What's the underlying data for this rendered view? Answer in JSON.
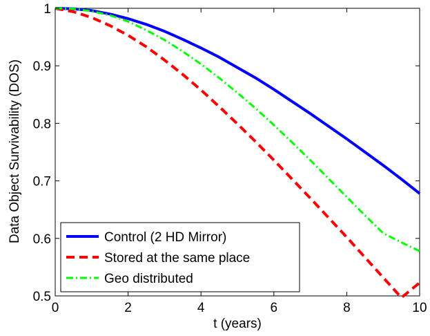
{
  "chart_data": {
    "type": "line",
    "title": "",
    "xlabel": "t (years)",
    "ylabel": "Data Object Survivability (DOS)",
    "xlim": [
      0,
      10
    ],
    "ylim": [
      0.5,
      1
    ],
    "xticks": [
      0,
      2,
      4,
      6,
      8,
      10
    ],
    "yticks": [
      0.5,
      0.6,
      0.7,
      0.8,
      0.9,
      1
    ],
    "xtick_labels": [
      "0",
      "2",
      "4",
      "6",
      "8",
      "10"
    ],
    "ytick_labels": [
      "0.5",
      "0.6",
      "0.7",
      "0.8",
      "0.9",
      "1"
    ],
    "grid": false,
    "legend_position": "bottom-left",
    "x": [
      0,
      0.5,
      1,
      1.5,
      2,
      2.5,
      3,
      3.5,
      4,
      4.5,
      5,
      5.5,
      6,
      6.5,
      7,
      7.5,
      8,
      8.5,
      9,
      9.5,
      10
    ],
    "series": [
      {
        "name": "Control (2 HD Mirror)",
        "color": "#0000ff",
        "style": "solid",
        "values": [
          1.0,
          0.999,
          0.996,
          0.99,
          0.982,
          0.972,
          0.96,
          0.946,
          0.931,
          0.915,
          0.897,
          0.879,
          0.859,
          0.838,
          0.817,
          0.795,
          0.773,
          0.75,
          0.727,
          0.703,
          0.678
        ]
      },
      {
        "name": "Stored at the same place",
        "color": "#ff0000",
        "style": "dashed",
        "values": [
          1.0,
          0.994,
          0.984,
          0.97,
          0.953,
          0.933,
          0.91,
          0.885,
          0.858,
          0.829,
          0.799,
          0.768,
          0.736,
          0.703,
          0.67,
          0.636,
          0.602,
          0.567,
          0.532,
          0.497,
          0.523
        ]
      },
      {
        "name": "Geo distributed",
        "color": "#00ff00",
        "style": "dashdot",
        "values": [
          1.0,
          0.999,
          0.995,
          0.988,
          0.977,
          0.962,
          0.945,
          0.925,
          0.903,
          0.879,
          0.853,
          0.826,
          0.797,
          0.767,
          0.736,
          0.704,
          0.672,
          0.64,
          0.609,
          0.593,
          0.578
        ]
      }
    ]
  }
}
